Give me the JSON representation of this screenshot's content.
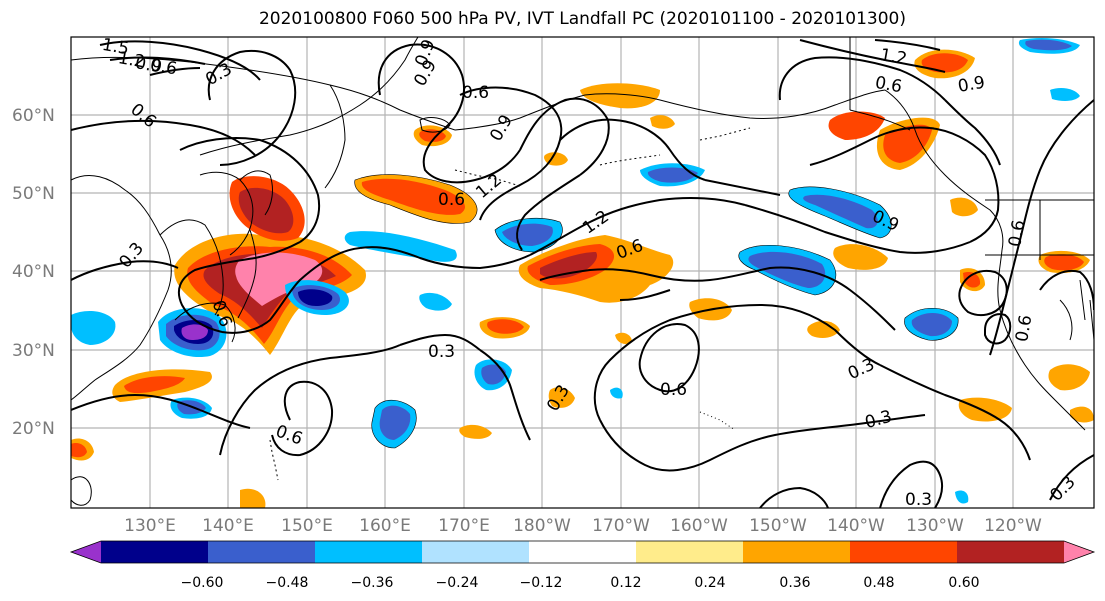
{
  "title": "2020100800 F060 500 hPa PV, IVT Landfall PC (2020101100 - 2020101300)",
  "lat_labels": [
    "60°N",
    "50°N",
    "40°N",
    "30°N",
    "20°N"
  ],
  "lon_labels": [
    "130°E",
    "140°E",
    "150°E",
    "160°E",
    "170°E",
    "180°W",
    "170°W",
    "160°W",
    "150°W",
    "140°W",
    "130°W",
    "120°W"
  ],
  "contour_levels": [
    "0.3",
    "0.6",
    "0.9",
    "1.2",
    "1.5"
  ],
  "contour_labels": [
    "1.5",
    "1.2",
    "0.9",
    "0.6",
    "0.3",
    "0.6",
    "0.9",
    "0.6",
    "1.2",
    "0.6",
    "1.2",
    "0.6",
    "0.9",
    "0.3",
    "0.6",
    "0.3",
    "0.6",
    "0.3",
    "0.9",
    "0.6",
    "1.2",
    "0.6",
    "0.9",
    "0.9",
    "0.6",
    "0.3",
    "0.3",
    "0.3",
    "0.6",
    "0.3"
  ],
  "colorbar": {
    "ticks": [
      "−0.60",
      "−0.48",
      "−0.36",
      "−0.24",
      "−0.12",
      "0.12",
      "0.24",
      "0.36",
      "0.48",
      "0.60"
    ],
    "colors": [
      "#9932cc",
      "#00008b",
      "#3a5fcd",
      "#00bfff",
      "#b0e2ff",
      "#ffffff",
      "#ffec8b",
      "#ffa500",
      "#ff4500",
      "#b22222",
      "#ff82ab"
    ]
  }
}
